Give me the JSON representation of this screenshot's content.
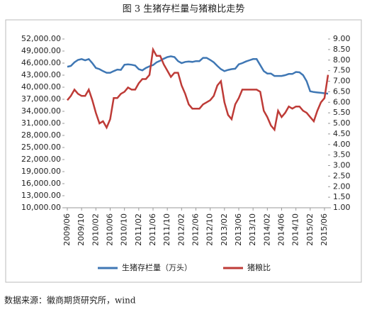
{
  "chart_data": {
    "type": "line",
    "title": "图 3 生猪存栏量与猪粮比走势",
    "source": "数据来源：徽商期货研究所，wind",
    "categories": [
      "2009/06",
      null,
      null,
      null,
      "2009/10",
      null,
      null,
      null,
      "2010/02",
      null,
      null,
      null,
      "2010/06",
      null,
      null,
      null,
      "2010/10",
      null,
      null,
      null,
      "2011/02",
      null,
      null,
      null,
      "2011/06",
      null,
      null,
      null,
      "2011/10",
      null,
      null,
      null,
      "2012/02",
      null,
      null,
      null,
      "2012/06",
      null,
      null,
      null,
      "2012/10",
      null,
      null,
      null,
      "2013/02",
      null,
      null,
      null,
      "2013/06",
      null,
      null,
      null,
      "2013/10",
      null,
      null,
      null,
      "2014/02",
      null,
      null,
      null,
      "2014/06",
      null,
      null,
      null,
      "2014/10",
      null,
      null,
      null,
      "2015/02",
      null,
      null,
      null,
      "2015/06",
      null
    ],
    "series": [
      {
        "name": "生猪存栏量（万头）",
        "color": "#3f77b4",
        "values": [
          45100,
          45300,
          46200,
          46800,
          47000,
          46700,
          47000,
          46000,
          44800,
          44500,
          44000,
          43600,
          43600,
          44000,
          44400,
          44300,
          45600,
          45700,
          45600,
          45400,
          44500,
          44200,
          44800,
          45200,
          45500,
          46200,
          46600,
          47100,
          47500,
          47700,
          47500,
          46500,
          46000,
          46300,
          46400,
          46300,
          46500,
          46500,
          47300,
          47300,
          46800,
          46200,
          45300,
          44500,
          44000,
          44300,
          44500,
          44600,
          45700,
          46000,
          46400,
          46700,
          47000,
          47000,
          45500,
          44000,
          43400,
          43400,
          42800,
          42800,
          42800,
          43000,
          43300,
          43300,
          43800,
          43700,
          43000,
          41500,
          39000,
          38800,
          38700,
          38600,
          38500,
          38400
        ]
      },
      {
        "name": "猪粮比",
        "color": "#be3b37",
        "axis": "y2",
        "values": [
          6.1,
          6.3,
          6.6,
          6.4,
          6.3,
          6.3,
          6.6,
          6.1,
          5.5,
          5.0,
          5.1,
          4.8,
          5.2,
          6.2,
          6.2,
          6.4,
          6.5,
          6.7,
          6.6,
          6.6,
          6.9,
          7.1,
          7.1,
          7.3,
          8.5,
          8.2,
          8.2,
          7.8,
          7.5,
          7.2,
          7.4,
          7.4,
          6.8,
          6.4,
          5.9,
          5.7,
          5.7,
          5.7,
          5.9,
          6.0,
          6.1,
          6.3,
          6.8,
          7.0,
          6.0,
          5.4,
          5.2,
          5.9,
          6.2,
          6.6,
          6.6,
          6.6,
          6.6,
          6.6,
          6.5,
          5.6,
          5.3,
          4.9,
          4.7,
          5.6,
          5.3,
          5.5,
          5.8,
          5.7,
          5.8,
          5.8,
          5.6,
          5.5,
          5.3,
          5.1,
          5.6,
          6.0,
          6.2,
          7.3
        ]
      }
    ],
    "ylim": [
      10000,
      52000
    ],
    "yticks": [
      {
        "value": 10000,
        "label": "10,000.00"
      },
      {
        "value": 13000,
        "label": "13,000.00"
      },
      {
        "value": 16000,
        "label": "16,000.00"
      },
      {
        "value": 19000,
        "label": "19,000.00"
      },
      {
        "value": 22000,
        "label": "22,000.00"
      },
      {
        "value": 25000,
        "label": "25,000.00"
      },
      {
        "value": 28000,
        "label": "28,000.00"
      },
      {
        "value": 31000,
        "label": "31,000.00"
      },
      {
        "value": 34000,
        "label": "34,000.00"
      },
      {
        "value": 37000,
        "label": "37,000.00"
      },
      {
        "value": 40000,
        "label": "40,000.00"
      },
      {
        "value": 43000,
        "label": "43,000.00"
      },
      {
        "value": 46000,
        "label": "46,000.00"
      },
      {
        "value": 49000,
        "label": "49,000.00"
      },
      {
        "value": 52000,
        "label": "52,000.00"
      }
    ],
    "y2lim": [
      1,
      9
    ],
    "y2ticks": [
      {
        "value": 1,
        "label": "1.00"
      },
      {
        "value": 1.5,
        "label": "1.50"
      },
      {
        "value": 2,
        "label": "2.00"
      },
      {
        "value": 2.5,
        "label": "2.50"
      },
      {
        "value": 3,
        "label": "3.00"
      },
      {
        "value": 3.5,
        "label": "3.50"
      },
      {
        "value": 4,
        "label": "4.00"
      },
      {
        "value": 4.5,
        "label": "4.50"
      },
      {
        "value": 5,
        "label": "5.00"
      },
      {
        "value": 5.5,
        "label": "5.50"
      },
      {
        "value": 6,
        "label": "6.00"
      },
      {
        "value": 6.5,
        "label": "6.50"
      },
      {
        "value": 7,
        "label": "7.00"
      },
      {
        "value": 7.5,
        "label": "7.50"
      },
      {
        "value": 8,
        "label": "8.00"
      },
      {
        "value": 8.5,
        "label": "8.50"
      },
      {
        "value": 9,
        "label": "9.00"
      }
    ],
    "legend": "bottom",
    "grid": false
  }
}
